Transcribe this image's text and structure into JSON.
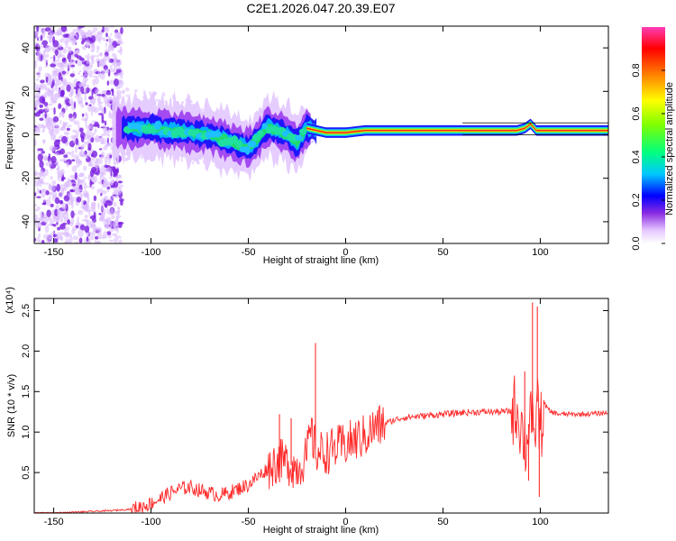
{
  "figure": {
    "title": "C2E1.2026.047.20.39.E07"
  },
  "chart_data": [
    {
      "type": "heatmap",
      "title": "C2E1.2026.047.20.39.E07",
      "xlabel": "Height of straight line (km)",
      "ylabel": "Frequency (Hz)",
      "xlim": [
        -160,
        135
      ],
      "ylim": [
        -50,
        50
      ],
      "x_ticks": [
        -150,
        -100,
        -50,
        0,
        50,
        100
      ],
      "y_ticks": [
        -40,
        -20,
        0,
        20,
        40
      ],
      "colorbar": {
        "label": "Normalized spectral amplitude",
        "range": [
          0,
          1
        ],
        "ticks": [
          0.0,
          0.2,
          0.4,
          0.6,
          0.8
        ]
      },
      "ridge_center": {
        "x": [
          -115,
          -100,
          -90,
          -80,
          -70,
          -60,
          -50,
          -45,
          -40,
          -35,
          -30,
          -25,
          -20,
          -10,
          0,
          10,
          20,
          40,
          60,
          80,
          88,
          92,
          95,
          98,
          100,
          120,
          135
        ],
        "freq": [
          3,
          3,
          2,
          1,
          0,
          -3,
          -6,
          -2,
          4,
          2,
          0,
          -4,
          3,
          1,
          1,
          2,
          2,
          2,
          2,
          2,
          2,
          3,
          5,
          2,
          2,
          2,
          2
        ]
      }
    },
    {
      "type": "line",
      "xlabel": "Height of straight line (km)",
      "ylabel": "SNR (10 * v/v)",
      "y_scale_label": "(x10⁴)",
      "xlim": [
        -160,
        135
      ],
      "ylim": [
        0,
        2.65
      ],
      "x_ticks": [
        -150,
        -100,
        -50,
        0,
        50,
        100
      ],
      "y_ticks": [
        0.5,
        1.0,
        1.5,
        2.0,
        2.5
      ],
      "series": [
        {
          "name": "SNR",
          "color": "#ff2a2a",
          "x": [
            -160,
            -150,
            -140,
            -130,
            -120,
            -110,
            -105,
            -100,
            -95,
            -90,
            -85,
            -80,
            -75,
            -70,
            -65,
            -60,
            -55,
            -50,
            -45,
            -40,
            -35,
            -30,
            -25,
            -20,
            -18,
            -15,
            -10,
            -5,
            0,
            5,
            10,
            15,
            20,
            25,
            30,
            40,
            50,
            60,
            70,
            80,
            85,
            88,
            90,
            93,
            95,
            97,
            98,
            100,
            102,
            105,
            110,
            120,
            130,
            135
          ],
          "y": [
            0.0,
            0.0,
            0.01,
            0.02,
            0.03,
            0.05,
            0.08,
            0.12,
            0.18,
            0.25,
            0.3,
            0.32,
            0.28,
            0.25,
            0.22,
            0.25,
            0.3,
            0.35,
            0.45,
            0.55,
            0.65,
            0.62,
            0.55,
            0.7,
            1.0,
            0.75,
            0.75,
            0.8,
            0.85,
            0.9,
            0.95,
            1.05,
            1.1,
            1.15,
            1.18,
            1.2,
            1.22,
            1.24,
            1.25,
            1.25,
            1.26,
            1.3,
            1.1,
            0.8,
            1.4,
            0.6,
            1.5,
            1.0,
            1.35,
            1.25,
            1.22,
            1.22,
            1.23,
            1.24
          ]
        }
      ],
      "spikes": [
        {
          "x": -15.5,
          "y": 2.1
        },
        {
          "x": -34,
          "y": 1.22
        },
        {
          "x": -28,
          "y": 1.17
        },
        {
          "x": 96,
          "y": 2.6
        },
        {
          "x": 98.5,
          "y": 2.55
        },
        {
          "x": 92,
          "y": 1.75
        },
        {
          "x": 99.5,
          "y": 0.2
        },
        {
          "x": 94,
          "y": 0.4
        }
      ]
    }
  ]
}
